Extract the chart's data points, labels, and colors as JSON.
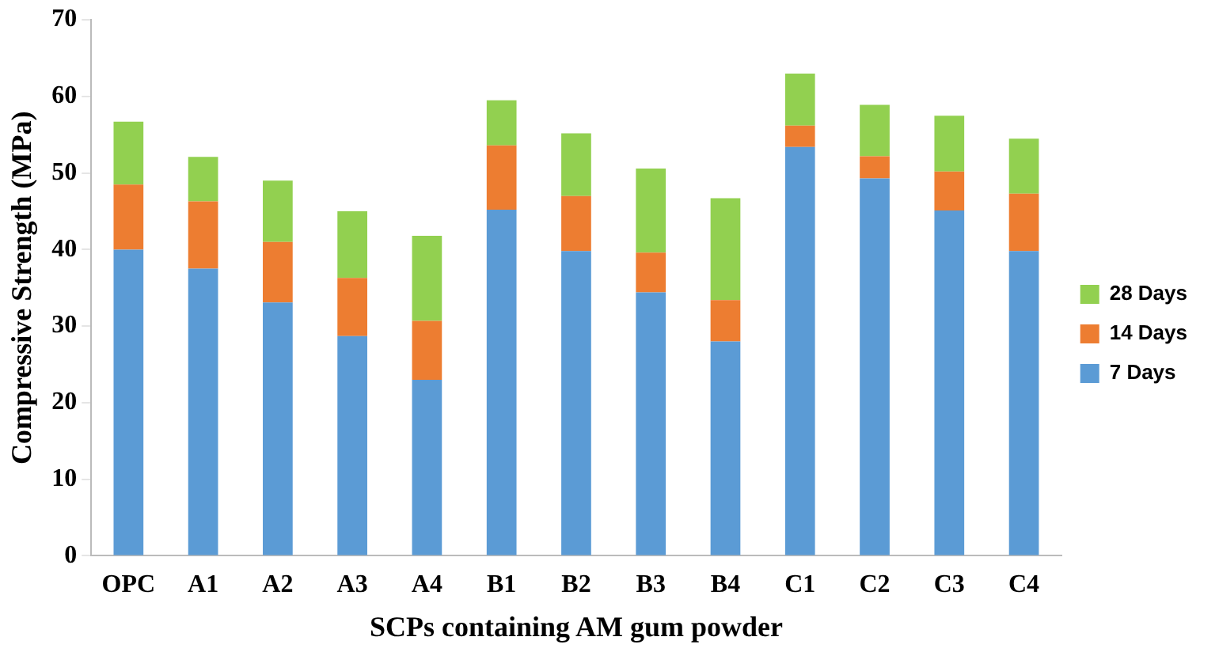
{
  "chart_data": {
    "type": "bar",
    "stacked": true,
    "xlabel": "SCPs containing AM gum powder",
    "ylabel": "Compressive Strength (MPa)",
    "categories": [
      "OPC",
      "A1",
      "A2",
      "A3",
      "A4",
      "B1",
      "B2",
      "B3",
      "B4",
      "C1",
      "C2",
      "C3",
      "C4"
    ],
    "series": [
      {
        "name": "7 Days",
        "color": "#5b9bd5",
        "values": [
          40,
          37.5,
          33.1,
          28.7,
          23,
          45.2,
          39.8,
          34.4,
          28,
          53.4,
          49.3,
          45.1,
          39.8
        ]
      },
      {
        "name": "14 Days",
        "color": "#ed7d31",
        "values": [
          8.5,
          8.8,
          7.9,
          7.6,
          7.7,
          8.4,
          7.2,
          5.2,
          5.4,
          2.8,
          2.9,
          5.1,
          7.5
        ]
      },
      {
        "name": "28 Days",
        "color": "#92d050",
        "values": [
          8.2,
          5.8,
          8.0,
          8.7,
          11.1,
          5.9,
          8.2,
          11.0,
          13.3,
          6.8,
          6.7,
          7.3,
          7.2
        ]
      }
    ],
    "ylim": [
      0,
      70
    ],
    "yticks": [
      0,
      10,
      20,
      30,
      40,
      50,
      60,
      70
    ],
    "grid": false,
    "legend": "right"
  }
}
